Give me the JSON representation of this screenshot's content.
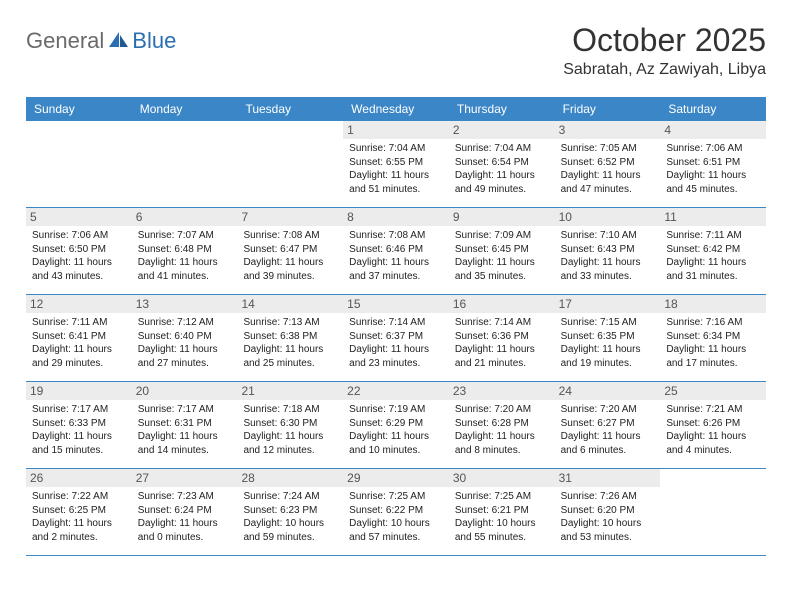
{
  "logo": {
    "general": "General",
    "blue": "Blue"
  },
  "title": "October 2025",
  "location": "Sabratah, Az Zawiyah, Libya",
  "colors": {
    "header_bg": "#3b86c7",
    "header_text": "#ffffff",
    "daynum_bg": "#ececec",
    "text": "#222222",
    "border": "#3b86c7",
    "logo_gray": "#6a6a6a",
    "logo_blue": "#2b6fb3"
  },
  "weekdays": [
    "Sunday",
    "Monday",
    "Tuesday",
    "Wednesday",
    "Thursday",
    "Friday",
    "Saturday"
  ],
  "weeks": [
    [
      null,
      null,
      null,
      {
        "n": "1",
        "sr": "Sunrise: 7:04 AM",
        "ss": "Sunset: 6:55 PM",
        "dl1": "Daylight: 11 hours",
        "dl2": "and 51 minutes."
      },
      {
        "n": "2",
        "sr": "Sunrise: 7:04 AM",
        "ss": "Sunset: 6:54 PM",
        "dl1": "Daylight: 11 hours",
        "dl2": "and 49 minutes."
      },
      {
        "n": "3",
        "sr": "Sunrise: 7:05 AM",
        "ss": "Sunset: 6:52 PM",
        "dl1": "Daylight: 11 hours",
        "dl2": "and 47 minutes."
      },
      {
        "n": "4",
        "sr": "Sunrise: 7:06 AM",
        "ss": "Sunset: 6:51 PM",
        "dl1": "Daylight: 11 hours",
        "dl2": "and 45 minutes."
      }
    ],
    [
      {
        "n": "5",
        "sr": "Sunrise: 7:06 AM",
        "ss": "Sunset: 6:50 PM",
        "dl1": "Daylight: 11 hours",
        "dl2": "and 43 minutes."
      },
      {
        "n": "6",
        "sr": "Sunrise: 7:07 AM",
        "ss": "Sunset: 6:48 PM",
        "dl1": "Daylight: 11 hours",
        "dl2": "and 41 minutes."
      },
      {
        "n": "7",
        "sr": "Sunrise: 7:08 AM",
        "ss": "Sunset: 6:47 PM",
        "dl1": "Daylight: 11 hours",
        "dl2": "and 39 minutes."
      },
      {
        "n": "8",
        "sr": "Sunrise: 7:08 AM",
        "ss": "Sunset: 6:46 PM",
        "dl1": "Daylight: 11 hours",
        "dl2": "and 37 minutes."
      },
      {
        "n": "9",
        "sr": "Sunrise: 7:09 AM",
        "ss": "Sunset: 6:45 PM",
        "dl1": "Daylight: 11 hours",
        "dl2": "and 35 minutes."
      },
      {
        "n": "10",
        "sr": "Sunrise: 7:10 AM",
        "ss": "Sunset: 6:43 PM",
        "dl1": "Daylight: 11 hours",
        "dl2": "and 33 minutes."
      },
      {
        "n": "11",
        "sr": "Sunrise: 7:11 AM",
        "ss": "Sunset: 6:42 PM",
        "dl1": "Daylight: 11 hours",
        "dl2": "and 31 minutes."
      }
    ],
    [
      {
        "n": "12",
        "sr": "Sunrise: 7:11 AM",
        "ss": "Sunset: 6:41 PM",
        "dl1": "Daylight: 11 hours",
        "dl2": "and 29 minutes."
      },
      {
        "n": "13",
        "sr": "Sunrise: 7:12 AM",
        "ss": "Sunset: 6:40 PM",
        "dl1": "Daylight: 11 hours",
        "dl2": "and 27 minutes."
      },
      {
        "n": "14",
        "sr": "Sunrise: 7:13 AM",
        "ss": "Sunset: 6:38 PM",
        "dl1": "Daylight: 11 hours",
        "dl2": "and 25 minutes."
      },
      {
        "n": "15",
        "sr": "Sunrise: 7:14 AM",
        "ss": "Sunset: 6:37 PM",
        "dl1": "Daylight: 11 hours",
        "dl2": "and 23 minutes."
      },
      {
        "n": "16",
        "sr": "Sunrise: 7:14 AM",
        "ss": "Sunset: 6:36 PM",
        "dl1": "Daylight: 11 hours",
        "dl2": "and 21 minutes."
      },
      {
        "n": "17",
        "sr": "Sunrise: 7:15 AM",
        "ss": "Sunset: 6:35 PM",
        "dl1": "Daylight: 11 hours",
        "dl2": "and 19 minutes."
      },
      {
        "n": "18",
        "sr": "Sunrise: 7:16 AM",
        "ss": "Sunset: 6:34 PM",
        "dl1": "Daylight: 11 hours",
        "dl2": "and 17 minutes."
      }
    ],
    [
      {
        "n": "19",
        "sr": "Sunrise: 7:17 AM",
        "ss": "Sunset: 6:33 PM",
        "dl1": "Daylight: 11 hours",
        "dl2": "and 15 minutes."
      },
      {
        "n": "20",
        "sr": "Sunrise: 7:17 AM",
        "ss": "Sunset: 6:31 PM",
        "dl1": "Daylight: 11 hours",
        "dl2": "and 14 minutes."
      },
      {
        "n": "21",
        "sr": "Sunrise: 7:18 AM",
        "ss": "Sunset: 6:30 PM",
        "dl1": "Daylight: 11 hours",
        "dl2": "and 12 minutes."
      },
      {
        "n": "22",
        "sr": "Sunrise: 7:19 AM",
        "ss": "Sunset: 6:29 PM",
        "dl1": "Daylight: 11 hours",
        "dl2": "and 10 minutes."
      },
      {
        "n": "23",
        "sr": "Sunrise: 7:20 AM",
        "ss": "Sunset: 6:28 PM",
        "dl1": "Daylight: 11 hours",
        "dl2": "and 8 minutes."
      },
      {
        "n": "24",
        "sr": "Sunrise: 7:20 AM",
        "ss": "Sunset: 6:27 PM",
        "dl1": "Daylight: 11 hours",
        "dl2": "and 6 minutes."
      },
      {
        "n": "25",
        "sr": "Sunrise: 7:21 AM",
        "ss": "Sunset: 6:26 PM",
        "dl1": "Daylight: 11 hours",
        "dl2": "and 4 minutes."
      }
    ],
    [
      {
        "n": "26",
        "sr": "Sunrise: 7:22 AM",
        "ss": "Sunset: 6:25 PM",
        "dl1": "Daylight: 11 hours",
        "dl2": "and 2 minutes."
      },
      {
        "n": "27",
        "sr": "Sunrise: 7:23 AM",
        "ss": "Sunset: 6:24 PM",
        "dl1": "Daylight: 11 hours",
        "dl2": "and 0 minutes."
      },
      {
        "n": "28",
        "sr": "Sunrise: 7:24 AM",
        "ss": "Sunset: 6:23 PM",
        "dl1": "Daylight: 10 hours",
        "dl2": "and 59 minutes."
      },
      {
        "n": "29",
        "sr": "Sunrise: 7:25 AM",
        "ss": "Sunset: 6:22 PM",
        "dl1": "Daylight: 10 hours",
        "dl2": "and 57 minutes."
      },
      {
        "n": "30",
        "sr": "Sunrise: 7:25 AM",
        "ss": "Sunset: 6:21 PM",
        "dl1": "Daylight: 10 hours",
        "dl2": "and 55 minutes."
      },
      {
        "n": "31",
        "sr": "Sunrise: 7:26 AM",
        "ss": "Sunset: 6:20 PM",
        "dl1": "Daylight: 10 hours",
        "dl2": "and 53 minutes."
      },
      null
    ]
  ]
}
